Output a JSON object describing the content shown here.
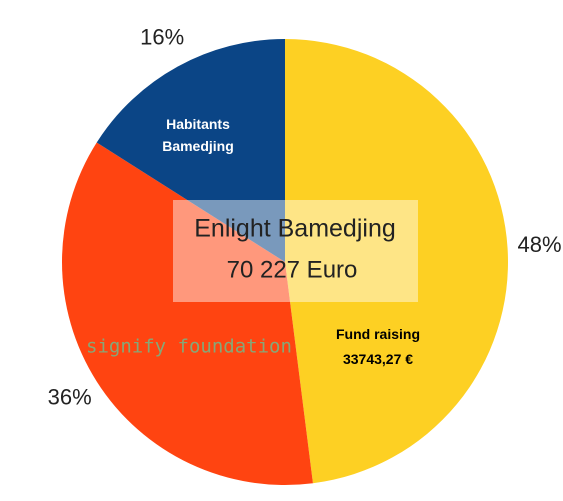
{
  "chart_data": {
    "type": "pie",
    "title": "Enlight Bamedjing",
    "subtitle": "70 227 Euro",
    "categories": [
      "Fund raising",
      null,
      "Habitants Bamedjing"
    ],
    "slice_notes": [
      "33743,27 €",
      null,
      null
    ],
    "values": [
      48,
      36,
      16
    ],
    "value_labels": [
      "48%",
      "36%",
      "16%"
    ],
    "colors": [
      "#fdd023",
      "#ff4411",
      "#0b4586"
    ],
    "watermark": "signify foundation"
  }
}
